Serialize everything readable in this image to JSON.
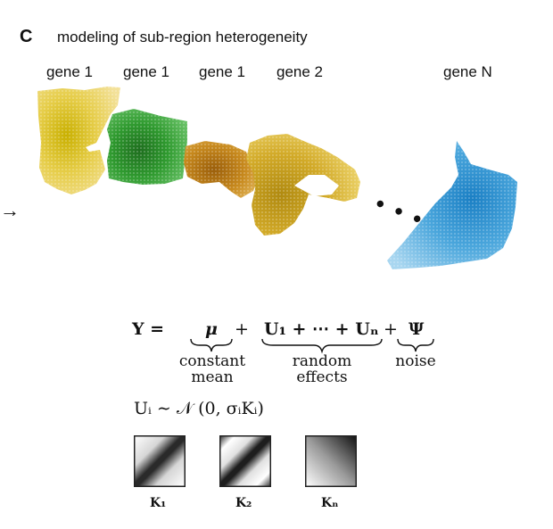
{
  "panel": {
    "letter": "C",
    "title": "modeling of sub-region heterogeneity"
  },
  "genes": [
    "gene 1",
    "gene 1",
    "gene 1",
    "gene 2",
    "gene N"
  ],
  "arrow_glyph": "→",
  "ellipsis": "• • •",
  "equation": {
    "lhs": "Y =",
    "mu": "μ",
    "plus1": "+",
    "random_sum": "U₁ + ⋯ + Uₙ",
    "plus2": "+",
    "psi": "Ψ",
    "label_constant": "constant",
    "label_mean": "mean",
    "label_random": "random",
    "label_effects": "effects",
    "label_noise": "noise"
  },
  "distribution": "Uᵢ ∼ 𝒩 (0, σᵢKᵢ)",
  "kernels": [
    {
      "label": "K₁"
    },
    {
      "label": "K₂"
    },
    {
      "label": "Kₙ"
    }
  ],
  "colors": {
    "yellow": "#e8c94a",
    "green": "#2f9a2f",
    "orange": "#c88a1e",
    "gold": "#d2aa28",
    "blue": "#3f9fd8"
  }
}
